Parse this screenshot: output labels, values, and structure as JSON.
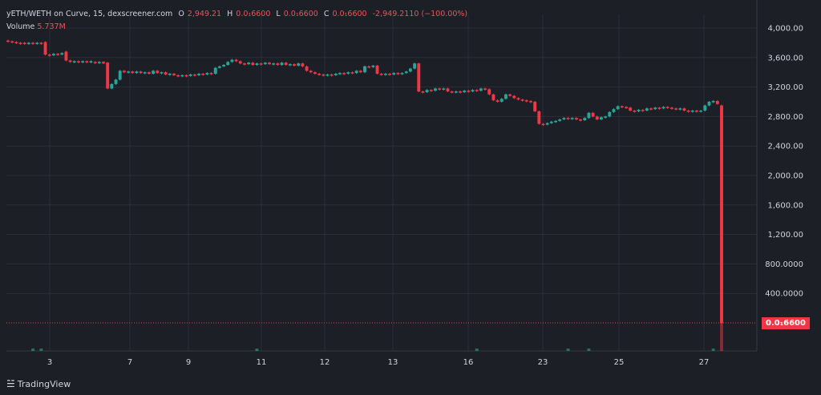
{
  "header": {
    "pair": "yETH/WETH on Curve, 15, dexscreener.com",
    "o_label": "O",
    "o_value": "2,949.21",
    "h_label": "H",
    "h_value": "0.0₁6600",
    "l_label": "L",
    "l_value": "0.0₁6600",
    "c_label": "C",
    "c_value": "0.0₁6600",
    "change": "-2,949.2110 (−100.00%)"
  },
  "volume": {
    "label": "Volume",
    "value": "5.737M"
  },
  "last_price_badge": "0.0₁6600",
  "branding": {
    "name": "TradingView"
  },
  "colors": {
    "up": "#26a69a",
    "down": "#f23645",
    "background": "#1c1f26",
    "grid": "#2a2e39",
    "text": "#d1d4dc"
  },
  "chart_data": {
    "type": "candlestick",
    "y_ticks": [
      "4,000.00",
      "3,600.00",
      "3,200.00",
      "2,800.00",
      "2,400.00",
      "2,000.00",
      "1,600.00",
      "1,200.00",
      "800.0000",
      "400.0000"
    ],
    "y_tick_values": [
      4000,
      3600,
      3200,
      2800,
      2400,
      2000,
      1600,
      1200,
      800,
      400
    ],
    "ylim": [
      -300,
      4150
    ],
    "x_ticks": [
      "3",
      "7",
      "9",
      "11",
      "12",
      "13",
      "16",
      "23",
      "25",
      "27"
    ],
    "grid": true,
    "candles": [
      {
        "o": 3830,
        "c": 3820
      },
      {
        "o": 3820,
        "c": 3810
      },
      {
        "o": 3810,
        "c": 3800
      },
      {
        "o": 3800,
        "c": 3790
      },
      {
        "o": 3800,
        "c": 3790
      },
      {
        "o": 3790,
        "c": 3800
      },
      {
        "o": 3800,
        "c": 3790
      },
      {
        "o": 3790,
        "c": 3800
      },
      {
        "o": 3800,
        "c": 3790
      },
      {
        "o": 3810,
        "c": 3640
      },
      {
        "o": 3640,
        "c": 3630
      },
      {
        "o": 3630,
        "c": 3650
      },
      {
        "o": 3650,
        "c": 3640
      },
      {
        "o": 3640,
        "c": 3660
      },
      {
        "o": 3680,
        "c": 3560
      },
      {
        "o": 3560,
        "c": 3540
      },
      {
        "o": 3540,
        "c": 3550
      },
      {
        "o": 3550,
        "c": 3540
      },
      {
        "o": 3540,
        "c": 3550
      },
      {
        "o": 3550,
        "c": 3540
      },
      {
        "o": 3540,
        "c": 3550
      },
      {
        "o": 3540,
        "c": 3530
      },
      {
        "o": 3530,
        "c": 3540
      },
      {
        "o": 3540,
        "c": 3520
      },
      {
        "o": 3530,
        "c": 3180
      },
      {
        "o": 3180,
        "c": 3240
      },
      {
        "o": 3240,
        "c": 3300
      },
      {
        "o": 3300,
        "c": 3420
      },
      {
        "o": 3420,
        "c": 3400
      },
      {
        "o": 3400,
        "c": 3410
      },
      {
        "o": 3410,
        "c": 3390
      },
      {
        "o": 3390,
        "c": 3410
      },
      {
        "o": 3410,
        "c": 3390
      },
      {
        "o": 3390,
        "c": 3400
      },
      {
        "o": 3400,
        "c": 3380
      },
      {
        "o": 3380,
        "c": 3420
      },
      {
        "o": 3420,
        "c": 3390
      },
      {
        "o": 3390,
        "c": 3400
      },
      {
        "o": 3400,
        "c": 3370
      },
      {
        "o": 3370,
        "c": 3380
      },
      {
        "o": 3380,
        "c": 3360
      },
      {
        "o": 3360,
        "c": 3350
      },
      {
        "o": 3350,
        "c": 3360
      },
      {
        "o": 3360,
        "c": 3350
      },
      {
        "o": 3350,
        "c": 3370
      },
      {
        "o": 3370,
        "c": 3360
      },
      {
        "o": 3360,
        "c": 3380
      },
      {
        "o": 3380,
        "c": 3370
      },
      {
        "o": 3370,
        "c": 3390
      },
      {
        "o": 3390,
        "c": 3380
      },
      {
        "o": 3380,
        "c": 3460
      },
      {
        "o": 3460,
        "c": 3480
      },
      {
        "o": 3480,
        "c": 3500
      },
      {
        "o": 3500,
        "c": 3540
      },
      {
        "o": 3540,
        "c": 3570
      },
      {
        "o": 3570,
        "c": 3550
      },
      {
        "o": 3550,
        "c": 3520
      },
      {
        "o": 3520,
        "c": 3510
      },
      {
        "o": 3510,
        "c": 3530
      },
      {
        "o": 3530,
        "c": 3500
      },
      {
        "o": 3500,
        "c": 3520
      },
      {
        "o": 3520,
        "c": 3510
      },
      {
        "o": 3510,
        "c": 3530
      },
      {
        "o": 3530,
        "c": 3510
      },
      {
        "o": 3510,
        "c": 3520
      },
      {
        "o": 3520,
        "c": 3500
      },
      {
        "o": 3500,
        "c": 3530
      },
      {
        "o": 3530,
        "c": 3500
      },
      {
        "o": 3500,
        "c": 3510
      },
      {
        "o": 3510,
        "c": 3490
      },
      {
        "o": 3490,
        "c": 3520
      },
      {
        "o": 3520,
        "c": 3480
      },
      {
        "o": 3480,
        "c": 3420
      },
      {
        "o": 3420,
        "c": 3400
      },
      {
        "o": 3400,
        "c": 3380
      },
      {
        "o": 3380,
        "c": 3370
      },
      {
        "o": 3370,
        "c": 3360
      },
      {
        "o": 3360,
        "c": 3370
      },
      {
        "o": 3370,
        "c": 3360
      },
      {
        "o": 3360,
        "c": 3380
      },
      {
        "o": 3380,
        "c": 3390
      },
      {
        "o": 3390,
        "c": 3380
      },
      {
        "o": 3380,
        "c": 3400
      },
      {
        "o": 3400,
        "c": 3390
      },
      {
        "o": 3390,
        "c": 3420
      },
      {
        "o": 3420,
        "c": 3400
      },
      {
        "o": 3400,
        "c": 3480
      },
      {
        "o": 3480,
        "c": 3470
      },
      {
        "o": 3470,
        "c": 3490
      },
      {
        "o": 3490,
        "c": 3380
      },
      {
        "o": 3380,
        "c": 3370
      },
      {
        "o": 3370,
        "c": 3380
      },
      {
        "o": 3380,
        "c": 3370
      },
      {
        "o": 3370,
        "c": 3390
      },
      {
        "o": 3390,
        "c": 3380
      },
      {
        "o": 3380,
        "c": 3390
      },
      {
        "o": 3390,
        "c": 3410
      },
      {
        "o": 3410,
        "c": 3450
      },
      {
        "o": 3450,
        "c": 3520
      },
      {
        "o": 3520,
        "c": 3140
      },
      {
        "o": 3140,
        "c": 3130
      },
      {
        "o": 3130,
        "c": 3160
      },
      {
        "o": 3160,
        "c": 3150
      },
      {
        "o": 3150,
        "c": 3180
      },
      {
        "o": 3180,
        "c": 3170
      },
      {
        "o": 3170,
        "c": 3180
      },
      {
        "o": 3180,
        "c": 3140
      },
      {
        "o": 3140,
        "c": 3130
      },
      {
        "o": 3130,
        "c": 3140
      },
      {
        "o": 3140,
        "c": 3130
      },
      {
        "o": 3130,
        "c": 3150
      },
      {
        "o": 3150,
        "c": 3140
      },
      {
        "o": 3140,
        "c": 3160
      },
      {
        "o": 3160,
        "c": 3150
      },
      {
        "o": 3150,
        "c": 3180
      },
      {
        "o": 3180,
        "c": 3170
      },
      {
        "o": 3170,
        "c": 3100
      },
      {
        "o": 3100,
        "c": 3020
      },
      {
        "o": 3020,
        "c": 3000
      },
      {
        "o": 3000,
        "c": 3040
      },
      {
        "o": 3040,
        "c": 3100
      },
      {
        "o": 3100,
        "c": 3080
      },
      {
        "o": 3080,
        "c": 3050
      },
      {
        "o": 3050,
        "c": 3030
      },
      {
        "o": 3030,
        "c": 3020
      },
      {
        "o": 3020,
        "c": 3010
      },
      {
        "o": 3010,
        "c": 3000
      },
      {
        "o": 3000,
        "c": 2870
      },
      {
        "o": 2870,
        "c": 2700
      },
      {
        "o": 2700,
        "c": 2690
      },
      {
        "o": 2690,
        "c": 2710
      },
      {
        "o": 2710,
        "c": 2730
      },
      {
        "o": 2730,
        "c": 2740
      },
      {
        "o": 2740,
        "c": 2760
      },
      {
        "o": 2760,
        "c": 2780
      },
      {
        "o": 2780,
        "c": 2770
      },
      {
        "o": 2770,
        "c": 2780
      },
      {
        "o": 2780,
        "c": 2760
      },
      {
        "o": 2760,
        "c": 2750
      },
      {
        "o": 2750,
        "c": 2780
      },
      {
        "o": 2780,
        "c": 2850
      },
      {
        "o": 2850,
        "c": 2800
      },
      {
        "o": 2800,
        "c": 2760
      },
      {
        "o": 2760,
        "c": 2790
      },
      {
        "o": 2790,
        "c": 2800
      },
      {
        "o": 2800,
        "c": 2860
      },
      {
        "o": 2860,
        "c": 2900
      },
      {
        "o": 2900,
        "c": 2940
      },
      {
        "o": 2940,
        "c": 2930
      },
      {
        "o": 2930,
        "c": 2920
      },
      {
        "o": 2920,
        "c": 2880
      },
      {
        "o": 2880,
        "c": 2870
      },
      {
        "o": 2870,
        "c": 2890
      },
      {
        "o": 2890,
        "c": 2880
      },
      {
        "o": 2880,
        "c": 2910
      },
      {
        "o": 2910,
        "c": 2900
      },
      {
        "o": 2900,
        "c": 2920
      },
      {
        "o": 2920,
        "c": 2910
      },
      {
        "o": 2910,
        "c": 2930
      },
      {
        "o": 2930,
        "c": 2920
      },
      {
        "o": 2920,
        "c": 2910
      },
      {
        "o": 2910,
        "c": 2900
      },
      {
        "o": 2900,
        "c": 2910
      },
      {
        "o": 2910,
        "c": 2880
      },
      {
        "o": 2880,
        "c": 2870
      },
      {
        "o": 2870,
        "c": 2880
      },
      {
        "o": 2880,
        "c": 2870
      },
      {
        "o": 2870,
        "c": 2880
      },
      {
        "o": 2880,
        "c": 2950
      },
      {
        "o": 2950,
        "c": 3000
      },
      {
        "o": 3000,
        "c": 3010
      },
      {
        "o": 3010,
        "c": 2970
      },
      {
        "o": 2949.21,
        "c": 6.6e-05
      }
    ]
  }
}
